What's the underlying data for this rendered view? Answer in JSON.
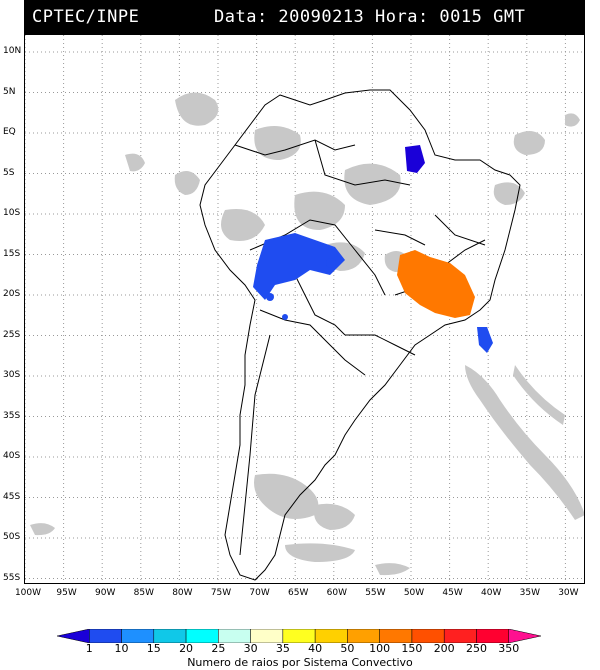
{
  "header": {
    "source": "CPTEC/INPE",
    "datetime": "Data: 20090213 Hora: 0015 GMT"
  },
  "latitude_labels": [
    "10N",
    "5N",
    "EQ",
    "5S",
    "10S",
    "15S",
    "20S",
    "25S",
    "30S",
    "35S",
    "40S",
    "45S",
    "50S",
    "55S"
  ],
  "longitude_labels": [
    "100W",
    "95W",
    "90W",
    "85W",
    "80W",
    "75W",
    "70W",
    "65W",
    "60W",
    "55W",
    "50W",
    "45W",
    "40W",
    "35W",
    "30W"
  ],
  "legend": {
    "title": "Numero de raios por Sistema Convectivo",
    "values": [
      "1",
      "10",
      "15",
      "20",
      "25",
      "30",
      "35",
      "40",
      "50",
      "100",
      "150",
      "200",
      "250",
      "350"
    ],
    "colors": [
      "#1a00d8",
      "#1f4cf0",
      "#1e90ff",
      "#10c8e8",
      "#00ffff",
      "#c8fff0",
      "#ffffc8",
      "#ffff20",
      "#ffd000",
      "#ffa000",
      "#ff7800",
      "#ff5000",
      "#ff2020",
      "#ff0030",
      "#ff1090"
    ]
  },
  "map": {
    "land_color": "#ffffff",
    "cloud_color": "#c8c8c8",
    "systems": [
      {
        "region": "Bolivia / Mato Grosso",
        "color": "#1f4cf0"
      },
      {
        "region": "Para coast",
        "color": "#1a00d8"
      },
      {
        "region": "Minas Gerais / Sao Paulo",
        "color": "#ff7800"
      },
      {
        "region": "Atlantic off Sao Paulo",
        "color": "#1f4cf0"
      }
    ]
  }
}
